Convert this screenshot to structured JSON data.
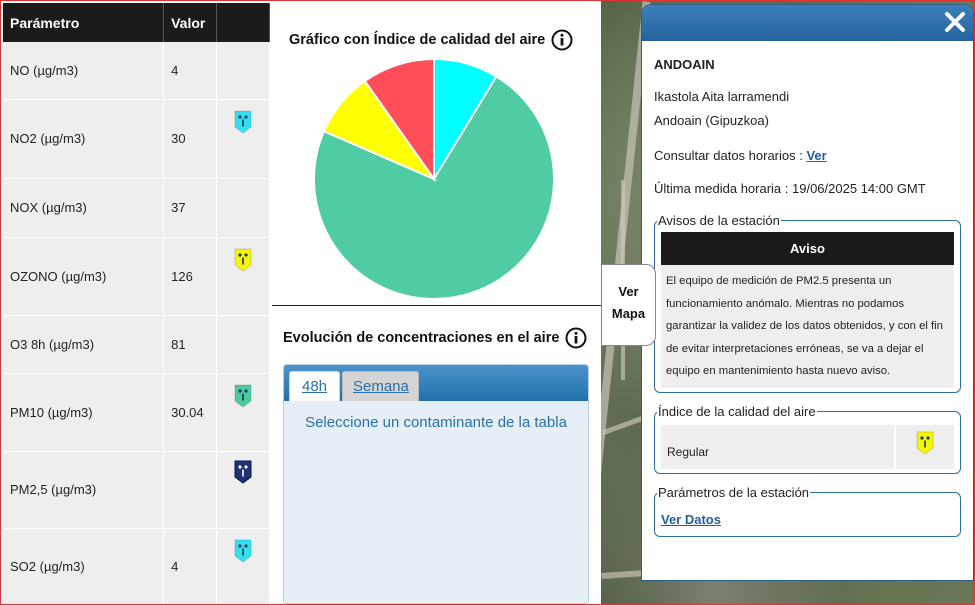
{
  "table": {
    "headers": [
      "Parámetro",
      "Valor",
      ""
    ],
    "rows": [
      {
        "param": "NO (µg/m3)",
        "value": "4",
        "icon": null
      },
      {
        "param": "NO2 (µg/m3)",
        "value": "30",
        "icon": "air-quality-very-good-icon",
        "color": "#33e0f0"
      },
      {
        "param": "NOX (µg/m3)",
        "value": "37",
        "icon": null
      },
      {
        "param": "OZONO (µg/m3)",
        "value": "126",
        "icon": "air-quality-regular-icon",
        "color": "#f5f50a"
      },
      {
        "param": "O3 8h (µg/m3)",
        "value": "81",
        "icon": null
      },
      {
        "param": "PM10 (µg/m3)",
        "value": "30.04",
        "icon": "air-quality-good-icon",
        "color": "#4fc9a0"
      },
      {
        "param": "PM2,5 (µg/m3)",
        "value": "",
        "icon": "air-quality-maintenance-icon",
        "color": "#1f2f7a"
      },
      {
        "param": "SO2 (µg/m3)",
        "value": "4",
        "icon": "air-quality-very-good-icon",
        "color": "#33e0f0"
      }
    ]
  },
  "pie_panel": {
    "title": "Gráfico con Índice de calidad del aire",
    "info_icon": "info-icon"
  },
  "chart_data": {
    "type": "pie",
    "title": "Gráfico con Índice de calidad del aire",
    "slices": [
      {
        "value": 8,
        "color": "#00ffff"
      },
      {
        "value": 67,
        "color": "#50cca5"
      },
      {
        "value": 8,
        "color": "#ffff00"
      },
      {
        "value": 9,
        "color": "#ff4d5a"
      }
    ]
  },
  "evolution_panel": {
    "title": "Evolución de concentraciones en el aire",
    "tabs": [
      "48h",
      "Semana"
    ],
    "message": "Seleccione un contaminante de la tabla"
  },
  "map": {
    "ver_mapa_line1": "Ver",
    "ver_mapa_line2": "Mapa"
  },
  "popup": {
    "close_icon": "close-icon",
    "station_name": "ANDOAIN",
    "address_line1": "Ikastola Aita larramendi",
    "address_line2": "Andoain (Gipuzkoa)",
    "hourly_label": "Consultar datos horarios : ",
    "hourly_link": "Ver",
    "last_measure": "Última medida horaria : 19/06/2025 14:00 GMT",
    "avisos": {
      "legend": "Avisos de la estación",
      "header": "Aviso",
      "text": "El equipo de medición de PM2.5 presenta un funcionamiento anómalo. Mientras no podamos garantizar la validez de los datos obtenidos, y con el fin de evitar interpretaciones erróneas, se va a dejar el equipo en mantenimiento hasta nuevo aviso."
    },
    "ica": {
      "legend": "Índice de la calidad del aire",
      "value": "Regular",
      "icon_color": "#f5f50a"
    },
    "params": {
      "legend": "Parámetros de la estación",
      "link": "Ver Datos"
    }
  }
}
